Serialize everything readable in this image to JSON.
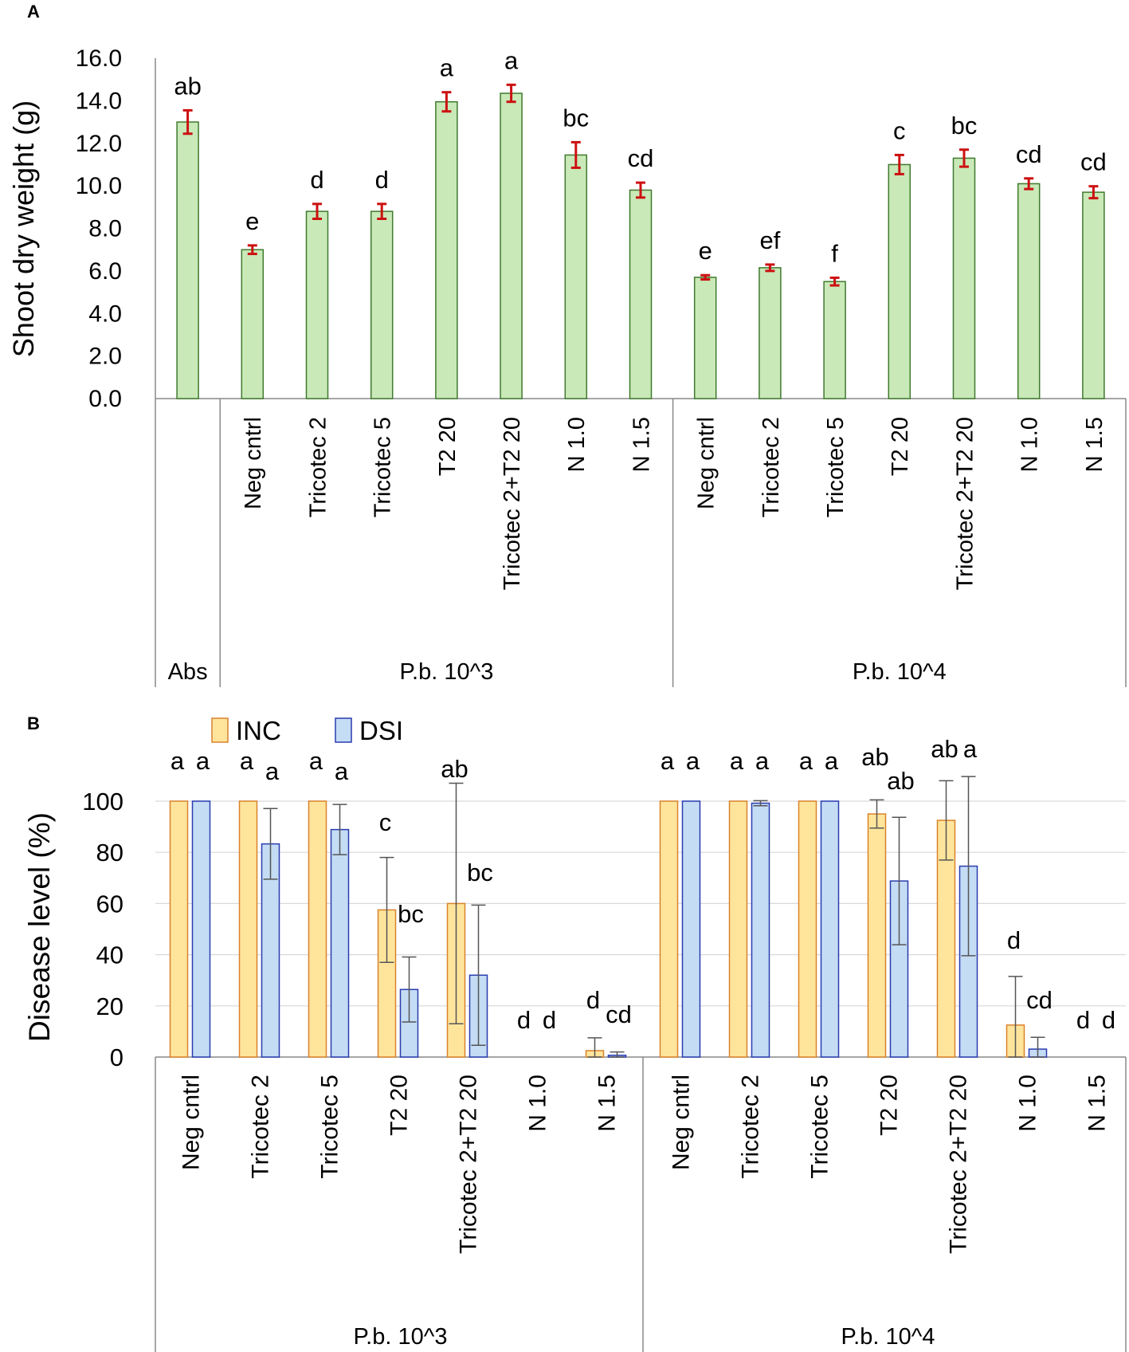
{
  "colors": {
    "panelA_bar_fill": "#c9e9b8",
    "panelA_bar_stroke": "#3f7a2d",
    "panelA_error": "#cc1111",
    "inc_fill": "#ffe59c",
    "inc_stroke": "#d9822b",
    "dsi_fill": "#c4dcf4",
    "dsi_stroke": "#2a3bb0",
    "panelB_error": "#555555",
    "axis": "#888888",
    "grid": "#d9d9d9",
    "text": "#000000"
  },
  "chart_data": [
    {
      "panel": "A",
      "type": "bar",
      "ylabel": "Shoot dry weight (g)",
      "ylim": [
        0,
        16
      ],
      "yticks": [
        "0.0",
        "2.0",
        "4.0",
        "6.0",
        "8.0",
        "10.0",
        "12.0",
        "14.0",
        "16.0"
      ],
      "grid": false,
      "groups": [
        {
          "label": "Abs",
          "categories": [
            ""
          ]
        },
        {
          "label": "P.b. 10^3",
          "categories": [
            "Neg cntrl",
            "Tricotec 2",
            "Tricotec 5",
            "T2 20",
            "Tricotec 2+T2 20",
            "N 1.0",
            "N 1.5"
          ]
        },
        {
          "label": "P.b. 10^4",
          "categories": [
            "Neg cntrl",
            "Tricotec 2",
            "Tricotec 5",
            "T2 20",
            "Tricotec 2+T2 20",
            "N 1.0",
            "N 1.5"
          ]
        }
      ],
      "values": [
        13.0,
        7.0,
        8.8,
        8.8,
        13.95,
        14.35,
        11.45,
        9.8,
        5.7,
        6.15,
        5.5,
        11.0,
        11.3,
        10.1,
        9.7
      ],
      "errors": [
        0.55,
        0.2,
        0.35,
        0.35,
        0.45,
        0.4,
        0.6,
        0.35,
        0.1,
        0.15,
        0.18,
        0.45,
        0.4,
        0.25,
        0.28
      ],
      "letters": [
        "ab",
        "e",
        "d",
        "d",
        "a",
        "a",
        "bc",
        "cd",
        "e",
        "ef",
        "f",
        "c",
        "bc",
        "cd",
        "cd"
      ]
    },
    {
      "panel": "B",
      "type": "bar",
      "ylabel": "Disease level (%)",
      "ylim": [
        0,
        100
      ],
      "yticks": [
        "0",
        "20",
        "40",
        "60",
        "80",
        "100"
      ],
      "grid": true,
      "legend": {
        "position": "top-left",
        "entries": [
          "INC",
          "DSI"
        ]
      },
      "groups": [
        {
          "label": "P.b. 10^3",
          "categories": [
            "Neg cntrl",
            "Tricotec 2",
            "Tricotec 5",
            "T2 20",
            "Tricotec 2+T2 20",
            "N 1.0",
            "N 1.5"
          ]
        },
        {
          "label": "P.b. 10^4",
          "categories": [
            "Neg cntrl",
            "Tricotec 2",
            "Tricotec 5",
            "T2 20",
            "Tricotec 2+T2 20",
            "N 1.0",
            "N 1.5"
          ]
        }
      ],
      "series": [
        {
          "name": "INC",
          "values": [
            100,
            100,
            100,
            57.5,
            60,
            0,
            2.5,
            100,
            100,
            100,
            95,
            92.5,
            12.5,
            0
          ],
          "errors": [
            0,
            0,
            0,
            20.5,
            47,
            0,
            5,
            0,
            0,
            0,
            5.5,
            15.5,
            19,
            0
          ],
          "letters": [
            "a",
            "a",
            "a",
            "c",
            "ab",
            "d",
            "d",
            "a",
            "a",
            "a",
            "ab",
            "ab",
            "d",
            "d"
          ]
        },
        {
          "name": "DSI",
          "values": [
            100,
            83.3,
            88.9,
            26.4,
            32,
            0,
            0.7,
            100,
            99.2,
            100,
            68.8,
            74.6,
            3.1,
            0
          ],
          "errors": [
            0,
            13.8,
            9.8,
            12.7,
            27.4,
            0,
            1.3,
            0,
            1.0,
            0,
            24.9,
            35,
            4.6,
            0
          ],
          "letters": [
            "a",
            "a",
            "a",
            "bc",
            "bc",
            "d",
            "cd",
            "a",
            "a",
            "a",
            "ab",
            "a",
            "cd",
            "d"
          ]
        }
      ]
    }
  ],
  "panels": {
    "a_label": "A",
    "b_label": "B"
  }
}
